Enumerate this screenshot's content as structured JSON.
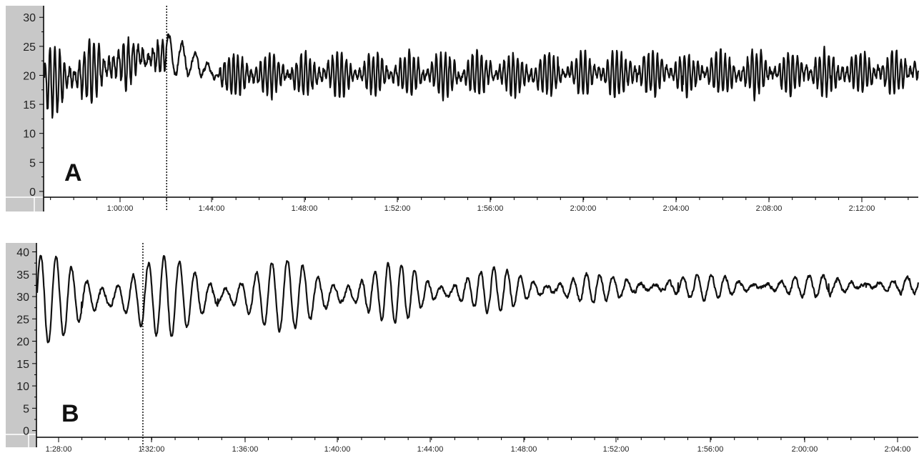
{
  "chart_data": [
    {
      "type": "line",
      "panel_label": "A",
      "yticks": [
        0,
        5,
        10,
        15,
        20,
        25,
        30
      ],
      "ylim": [
        -1,
        32
      ],
      "xtick_labels": [
        "1:00:00",
        "1:44:00",
        "1:48:00",
        "1:52:00",
        "1:56:00",
        "2:00:00",
        "2:04:00",
        "2:08:00",
        "2:12:00"
      ],
      "grid": false,
      "series": [
        {
          "segments": [
            {
              "phase": 0.0,
              "baseline": 18.5,
              "amplitude": 5.0,
              "cycles": 25,
              "noise": 2.0
            },
            {
              "phase": 0.14,
              "baseline": 24.0,
              "amplitude": 2.5,
              "cycles": 4,
              "noise": 1.0
            },
            {
              "phase": 0.2,
              "baseline": 20.0,
              "amplitude": 3.0,
              "cycles": 155,
              "noise": 1.5
            },
            {
              "phase": 1.0,
              "baseline": 20.5,
              "amplitude": 3.0,
              "cycles": 0,
              "noise": 1.5
            }
          ]
        }
      ],
      "marker_phase": 0.14
    },
    {
      "type": "line",
      "panel_label": "B",
      "yticks": [
        0,
        5,
        10,
        15,
        20,
        25,
        30,
        35,
        40
      ],
      "ylim": [
        -1.5,
        42
      ],
      "xtick_labels": [
        "1:28:00",
        "1:32:00",
        "1:36:00",
        "1:40:00",
        "1:44:00",
        "1:48:00",
        "1:52:00",
        "1:56:00",
        "2:00:00",
        "2:04:00"
      ],
      "grid": false,
      "series": [
        {
          "segments": [
            {
              "phase": 0.0,
              "baseline": 29.5,
              "amplitude": 8.0,
              "cycles": 20,
              "noise": 0.8
            },
            {
              "phase": 0.35,
              "baseline": 30.5,
              "amplitude": 6.0,
              "cycles": 20,
              "noise": 0.8
            },
            {
              "phase": 0.65,
              "baseline": 32.0,
              "amplitude": 2.5,
              "cycles": 22,
              "noise": 0.8
            },
            {
              "phase": 1.0,
              "baseline": 32.5,
              "amplitude": 1.6,
              "cycles": 0,
              "noise": 0.8
            }
          ]
        }
      ],
      "marker_phase": 0.12
    }
  ]
}
